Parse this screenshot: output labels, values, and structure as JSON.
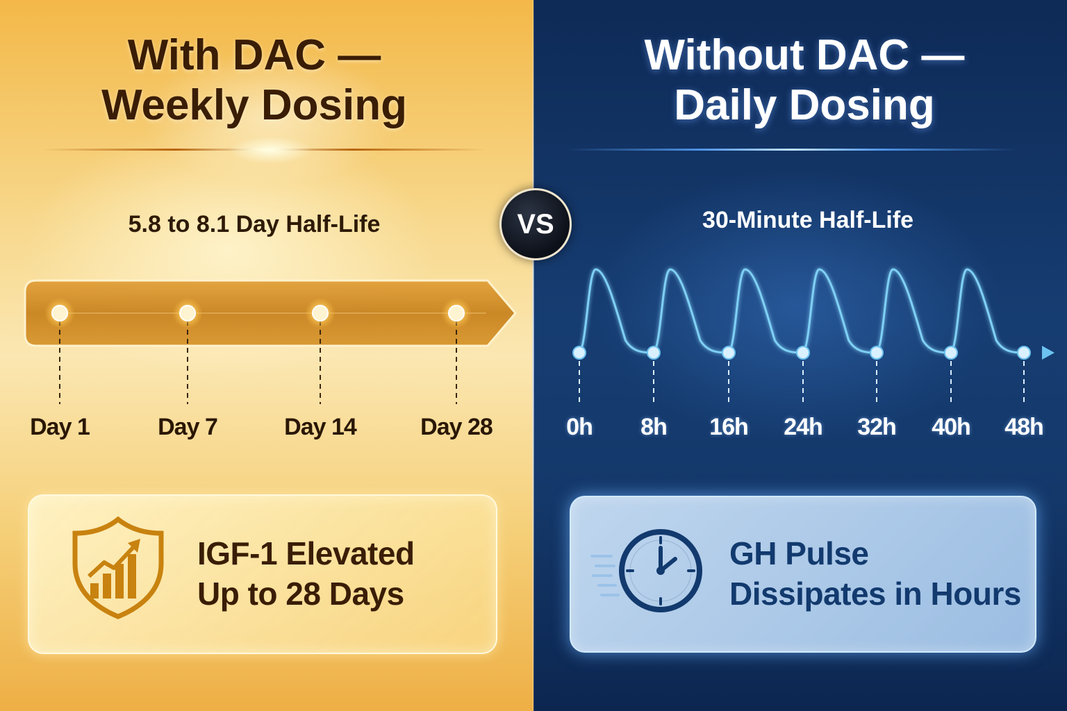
{
  "left_panel": {
    "title_line1": "With DAC —",
    "title_line2": "Weekly Dosing",
    "half_life": "5.8 to 8.1 Day Half-Life",
    "timeline_labels": [
      "Day 1",
      "Day 7",
      "Day 14",
      "Day 28"
    ],
    "card_line1": "IGF-1 Elevated",
    "card_line2": "Up to 28 Days",
    "card_icon": "shield-trend-icon",
    "accent_color": "#f4b24a"
  },
  "vs_label": "VS",
  "right_panel": {
    "title_line1": "Without DAC —",
    "title_line2": "Daily Dosing",
    "half_life": "30-Minute Half-Life",
    "timeline_labels": [
      "0h",
      "8h",
      "16h",
      "24h",
      "32h",
      "40h",
      "48h"
    ],
    "pulse_count": 6,
    "card_line1": "GH Pulse",
    "card_line2": "Dissipates in Hours",
    "card_icon": "clock-icon",
    "accent_color": "#6cc3f0"
  }
}
